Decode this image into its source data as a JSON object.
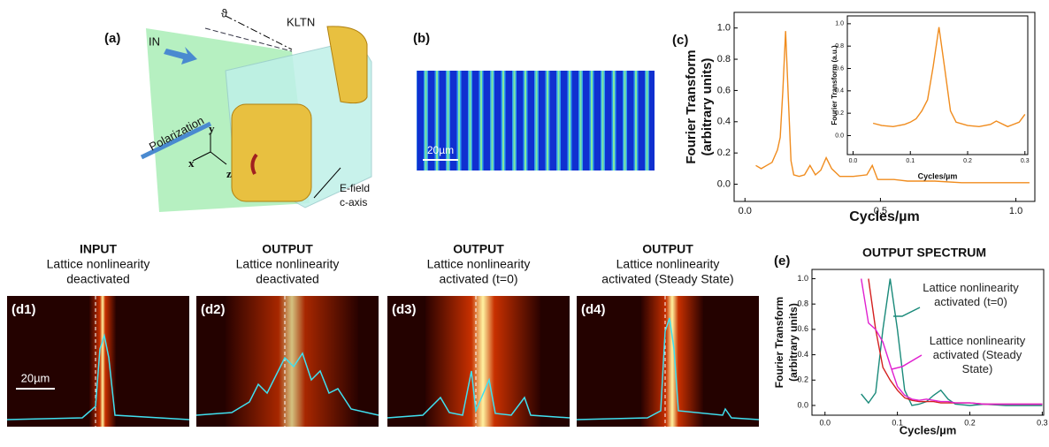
{
  "panel_a": {
    "label": "(a)",
    "input": "IN",
    "angle": "ϑ",
    "crystal": "KLTN",
    "polarization": "Polarization",
    "axis_y": "y",
    "axis_x": "x",
    "axis_z": "z",
    "field": [
      "E-field",
      "c-axis"
    ]
  },
  "panel_b": {
    "label": "(b)",
    "scale_bar": "20µm"
  },
  "panels_d": [
    {
      "tag": "(d1)",
      "title": [
        "INPUT",
        "Lattice nonlinearity",
        "deactivated"
      ]
    },
    {
      "tag": "(d2)",
      "title": [
        "OUTPUT",
        "Lattice nonlinearity",
        "deactivated"
      ]
    },
    {
      "tag": "(d3)",
      "title": [
        "OUTPUT",
        "Lattice nonlinearity",
        "activated (t=0)"
      ]
    },
    {
      "tag": "(d4)",
      "title": [
        "OUTPUT",
        "Lattice nonlinearity",
        "activated (Steady State)"
      ]
    }
  ],
  "panel_d_scale_bar": "20µm",
  "chart_data": [
    {
      "type": "line",
      "label": "(c)",
      "y_label": [
        "Fourier Transform",
        "(arbitrary units)"
      ],
      "x_label": "Cycles/µm",
      "x": [
        0.04,
        0.06,
        0.08,
        0.1,
        0.12,
        0.13,
        0.14,
        0.15,
        0.16,
        0.17,
        0.18,
        0.2,
        0.22,
        0.24,
        0.26,
        0.28,
        0.3,
        0.32,
        0.35,
        0.4,
        0.45,
        0.47,
        0.49,
        0.55,
        0.6,
        0.7,
        0.8,
        0.9,
        1.0,
        1.05
      ],
      "series": [
        {
          "color": "#f08c1e",
          "values": [
            0.12,
            0.1,
            0.12,
            0.14,
            0.22,
            0.3,
            0.6,
            0.98,
            0.55,
            0.15,
            0.06,
            0.05,
            0.06,
            0.12,
            0.06,
            0.09,
            0.17,
            0.1,
            0.05,
            0.05,
            0.06,
            0.12,
            0.03,
            0.03,
            0.02,
            0.02,
            0.01,
            0.01,
            0.01,
            0.01
          ]
        }
      ],
      "xlim": [
        -0.04,
        1.07
      ],
      "ylim": [
        -0.11,
        1.1
      ],
      "xticks": [
        {
          "value": 0,
          "label": "0.0"
        },
        0.5,
        {
          "value": 1,
          "label": "1.0"
        }
      ],
      "yticks": [
        {
          "value": 0,
          "label": "0.0"
        },
        0.2,
        0.4,
        0.6,
        0.8,
        {
          "value": 1,
          "label": "1.0"
        }
      ]
    },
    {
      "type": "line",
      "y_label": [
        "Fourier Transform (a.u.)"
      ],
      "x_label": "Cycles/µm",
      "x": [
        0.035,
        0.05,
        0.07,
        0.09,
        0.1,
        0.11,
        0.12,
        0.13,
        0.14,
        0.15,
        0.16,
        0.17,
        0.18,
        0.2,
        0.22,
        0.24,
        0.25,
        0.27,
        0.29,
        0.3
      ],
      "series": [
        {
          "color": "#f08c1e",
          "values": [
            0.11,
            0.09,
            0.08,
            0.1,
            0.12,
            0.15,
            0.22,
            0.32,
            0.62,
            0.97,
            0.6,
            0.22,
            0.12,
            0.09,
            0.08,
            0.1,
            0.13,
            0.08,
            0.12,
            0.19
          ]
        }
      ],
      "xlim": [
        -0.01,
        0.305
      ],
      "ylim": [
        -0.17,
        1.07
      ],
      "xticks": [
        {
          "value": 0,
          "label": "0.0"
        },
        0.1,
        0.2,
        0.3
      ],
      "yticks": [
        {
          "value": 0,
          "label": "0.0"
        },
        0.2,
        0.4,
        0.6,
        0.8,
        {
          "value": 1,
          "label": "1.0"
        }
      ]
    },
    {
      "type": "line",
      "label": "(e)",
      "title": "OUTPUT SPECTRUM",
      "y_label": [
        "Fourier Transform",
        "(arbitrary units)"
      ],
      "x_label": "Cycles/µm",
      "x": [
        0.05,
        0.06,
        0.07,
        0.08,
        0.09,
        0.1,
        0.11,
        0.12,
        0.13,
        0.14,
        0.15,
        0.16,
        0.17,
        0.18,
        0.2,
        0.22,
        0.25,
        0.3
      ],
      "series": [
        {
          "name": "Lattice nonlinearity activated (t=0)",
          "color": "#1a8a7a",
          "values": [
            0.09,
            0.02,
            0.1,
            0.6,
            1.0,
            0.6,
            0.12,
            0.0,
            0.01,
            0.03,
            0.08,
            0.12,
            0.05,
            0.01,
            0.0,
            0.01,
            0.0,
            0.0
          ]
        },
        {
          "color": "#d42020",
          "values": [
            null,
            1.0,
            0.6,
            0.3,
            0.2,
            0.12,
            0.06,
            0.04,
            0.03,
            0.03,
            0.03,
            0.02,
            0.02,
            0.02,
            0.02,
            0.01,
            0.01,
            0.01
          ]
        },
        {
          "name": "Lattice nonlinearity activated (Steady State)",
          "color": "#e020d0",
          "values": [
            1.0,
            0.65,
            0.6,
            0.5,
            0.32,
            0.15,
            0.08,
            0.05,
            0.04,
            0.05,
            0.04,
            0.03,
            0.03,
            0.02,
            0.02,
            0.01,
            0.01,
            0.01
          ]
        }
      ],
      "xlim": [
        -0.018,
        0.302
      ],
      "ylim": [
        -0.077,
        1.073
      ],
      "xticks": [
        {
          "value": 0,
          "label": "0.0"
        },
        0.1,
        0.2,
        0.3
      ],
      "yticks": [
        {
          "value": 0,
          "label": "0.0"
        },
        0.2,
        0.4,
        0.6,
        0.8,
        {
          "value": 1,
          "label": "1.0"
        }
      ]
    }
  ]
}
